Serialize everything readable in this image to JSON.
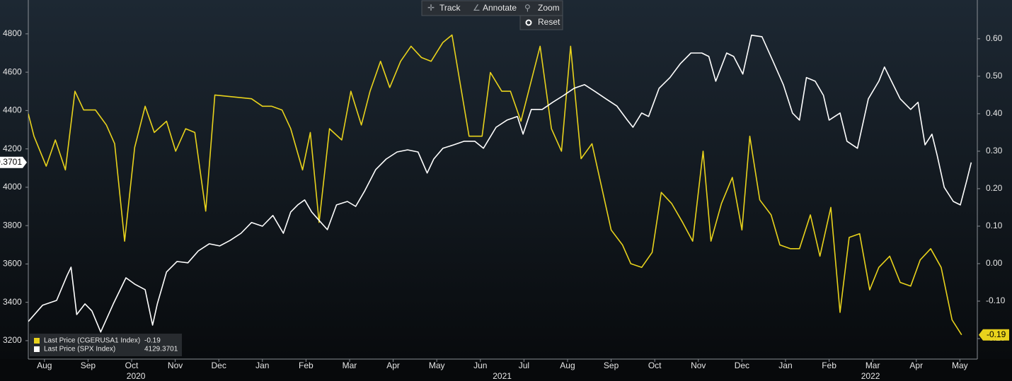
{
  "toolbar": {
    "buttons": [
      "Track",
      "Annotate",
      "Zoom"
    ],
    "reset": "Reset"
  },
  "chart_data": {
    "type": "line",
    "xlim": [
      0.13,
      21.9
    ],
    "xticks": [
      {
        "value": 0.5,
        "label": "Aug"
      },
      {
        "value": 1.5,
        "label": "Sep"
      },
      {
        "value": 2.5,
        "label": "Oct"
      },
      {
        "value": 3.5,
        "label": "Nov"
      },
      {
        "value": 4.5,
        "label": "Dec"
      },
      {
        "value": 5.5,
        "label": "Jan"
      },
      {
        "value": 6.5,
        "label": "Feb"
      },
      {
        "value": 7.5,
        "label": "Mar"
      },
      {
        "value": 8.5,
        "label": "Apr"
      },
      {
        "value": 9.5,
        "label": "May"
      },
      {
        "value": 10.5,
        "label": "Jun"
      },
      {
        "value": 11.5,
        "label": "Jul"
      },
      {
        "value": 12.5,
        "label": "Aug"
      },
      {
        "value": 13.5,
        "label": "Sep"
      },
      {
        "value": 14.5,
        "label": "Oct"
      },
      {
        "value": 15.5,
        "label": "Nov"
      },
      {
        "value": 16.5,
        "label": "Dec"
      },
      {
        "value": 17.5,
        "label": "Jan"
      },
      {
        "value": 18.5,
        "label": "Feb"
      },
      {
        "value": 19.5,
        "label": "Mar"
      },
      {
        "value": 20.5,
        "label": "Apr"
      },
      {
        "value": 21.5,
        "label": "May"
      }
    ],
    "xyears": [
      {
        "value": 2.6,
        "label": "2020"
      },
      {
        "value": 11,
        "label": "2021"
      },
      {
        "value": 19.45,
        "label": "2022"
      }
    ],
    "ylim": [
      3115,
      4958
    ],
    "yticks": [
      3200,
      3400,
      3600,
      3800,
      4000,
      4200,
      4400,
      4600,
      4800
    ],
    "y2lim": [
      -0.249,
      0.694
    ],
    "y2ticks": [
      {
        "value": -0.2,
        "label": "-0.20"
      },
      {
        "value": -0.1,
        "label": "-0.10"
      },
      {
        "value": 0,
        "label": "0.00"
      },
      {
        "value": 0.1,
        "label": "0.10"
      },
      {
        "value": 0.2,
        "label": "0.20"
      },
      {
        "value": 0.3,
        "label": "0.30"
      },
      {
        "value": 0.4,
        "label": "0.40"
      },
      {
        "value": 0.5,
        "label": "0.50"
      },
      {
        "value": 0.6,
        "label": "0.60"
      }
    ],
    "series": [
      {
        "name": "Last Price (CGERUSA1 Index)",
        "color": "#e8d21c",
        "axis": "y2",
        "last_label": "-0.19",
        "x": [
          0.13,
          0.26,
          0.54,
          0.75,
          0.98,
          1.2,
          1.4,
          1.67,
          1.92,
          2.11,
          2.34,
          2.57,
          2.81,
          3.02,
          3.3,
          3.51,
          3.74,
          3.95,
          4.2,
          4.41,
          5.25,
          5.5,
          5.71,
          5.95,
          6.15,
          6.42,
          6.6,
          6.8,
          7.04,
          7.32,
          7.53,
          7.77,
          7.97,
          8.21,
          8.42,
          8.67,
          8.91,
          9.15,
          9.37,
          9.64,
          9.85,
          10.24,
          10.54,
          10.73,
          10.99,
          11.19,
          11.43,
          11.87,
          12.13,
          12.36,
          12.57,
          12.81,
          13.06,
          13.5,
          13.76,
          13.95,
          14.2,
          14.44,
          14.65,
          14.89,
          15.14,
          15.37,
          15.61,
          15.79,
          16.03,
          16.28,
          16.5,
          16.68,
          16.91,
          17.17,
          17.37,
          17.61,
          17.82,
          18.07,
          18.29,
          18.54,
          18.75,
          18.96,
          19.2,
          19.43,
          19.64,
          19.89,
          20.13,
          20.37,
          20.59,
          20.83,
          21.07,
          21.32,
          21.54
        ],
        "values": [
          0.4,
          0.34,
          0.26,
          0.33,
          0.25,
          0.46,
          0.41,
          0.41,
          0.37,
          0.32,
          0.06,
          0.31,
          0.42,
          0.35,
          0.38,
          0.3,
          0.36,
          0.35,
          0.14,
          0.45,
          0.44,
          0.42,
          0.42,
          0.41,
          0.36,
          0.25,
          0.35,
          0.11,
          0.36,
          0.33,
          0.46,
          0.37,
          0.46,
          0.54,
          0.47,
          0.54,
          0.58,
          0.55,
          0.54,
          0.59,
          0.61,
          0.34,
          0.34,
          0.51,
          0.46,
          0.46,
          0.38,
          0.58,
          0.36,
          0.3,
          0.58,
          0.28,
          0.32,
          0.09,
          0.05,
          0.0,
          -0.01,
          0.03,
          0.19,
          0.16,
          0.11,
          0.06,
          0.3,
          0.06,
          0.16,
          0.23,
          0.09,
          0.34,
          0.17,
          0.13,
          0.05,
          0.04,
          0.04,
          0.13,
          0.02,
          0.15,
          -0.13,
          0.07,
          0.08,
          -0.07,
          -0.01,
          0.02,
          -0.05,
          -0.06,
          0.01,
          0.04,
          -0.01,
          -0.15,
          -0.19
        ]
      },
      {
        "name": "Last Price (SPX Index)",
        "color": "#ffffff",
        "axis": "y",
        "last_label": "4129.3701",
        "x": [
          0.13,
          0.46,
          0.78,
          1.02,
          1.11,
          1.24,
          1.43,
          1.59,
          1.79,
          2.08,
          2.37,
          2.57,
          2.81,
          2.98,
          3.09,
          3.3,
          3.54,
          3.79,
          4.03,
          4.28,
          4.52,
          4.76,
          5.01,
          5.25,
          5.5,
          5.74,
          5.98,
          6.15,
          6.31,
          6.47,
          6.63,
          6.8,
          6.99,
          7.2,
          7.45,
          7.64,
          7.85,
          8.1,
          8.34,
          8.59,
          8.83,
          9.07,
          9.28,
          9.43,
          9.64,
          9.89,
          10.13,
          10.37,
          10.57,
          10.86,
          11.11,
          11.35,
          11.48,
          11.67,
          11.92,
          12.16,
          12.41,
          12.65,
          12.89,
          13.14,
          13.38,
          13.63,
          13.87,
          14.0,
          14.2,
          14.36,
          14.6,
          14.85,
          15.09,
          15.33,
          15.58,
          15.74,
          15.9,
          16.15,
          16.31,
          16.52,
          16.72,
          16.96,
          17.2,
          17.45,
          17.66,
          17.82,
          17.98,
          18.18,
          18.37,
          18.5,
          18.75,
          18.91,
          19.15,
          19.4,
          19.64,
          19.77,
          19.93,
          20.13,
          20.37,
          20.54,
          20.7,
          20.86,
          20.98,
          21.14,
          21.35,
          21.51,
          21.66,
          21.76
        ],
        "values": [
          3300,
          3385,
          3410,
          3540,
          3583,
          3336,
          3392,
          3355,
          3245,
          3392,
          3528,
          3495,
          3466,
          3281,
          3392,
          3558,
          3613,
          3606,
          3668,
          3705,
          3694,
          3723,
          3760,
          3816,
          3797,
          3853,
          3760,
          3871,
          3908,
          3934,
          3871,
          3827,
          3779,
          3908,
          3926,
          3900,
          3982,
          4092,
          4147,
          4184,
          4195,
          4184,
          4074,
          4147,
          4203,
          4221,
          4240,
          4240,
          4203,
          4313,
          4350,
          4369,
          4277,
          4406,
          4406,
          4443,
          4479,
          4516,
          4535,
          4498,
          4461,
          4424,
          4350,
          4313,
          4387,
          4369,
          4516,
          4572,
          4645,
          4700,
          4700,
          4682,
          4553,
          4700,
          4682,
          4590,
          4793,
          4785,
          4664,
          4535,
          4387,
          4350,
          4572,
          4553,
          4479,
          4350,
          4387,
          4240,
          4203,
          4461,
          4553,
          4627,
          4553,
          4461,
          4406,
          4443,
          4221,
          4277,
          4166,
          4000,
          3926,
          3908,
          4037,
          4129.3701
        ]
      }
    ]
  }
}
